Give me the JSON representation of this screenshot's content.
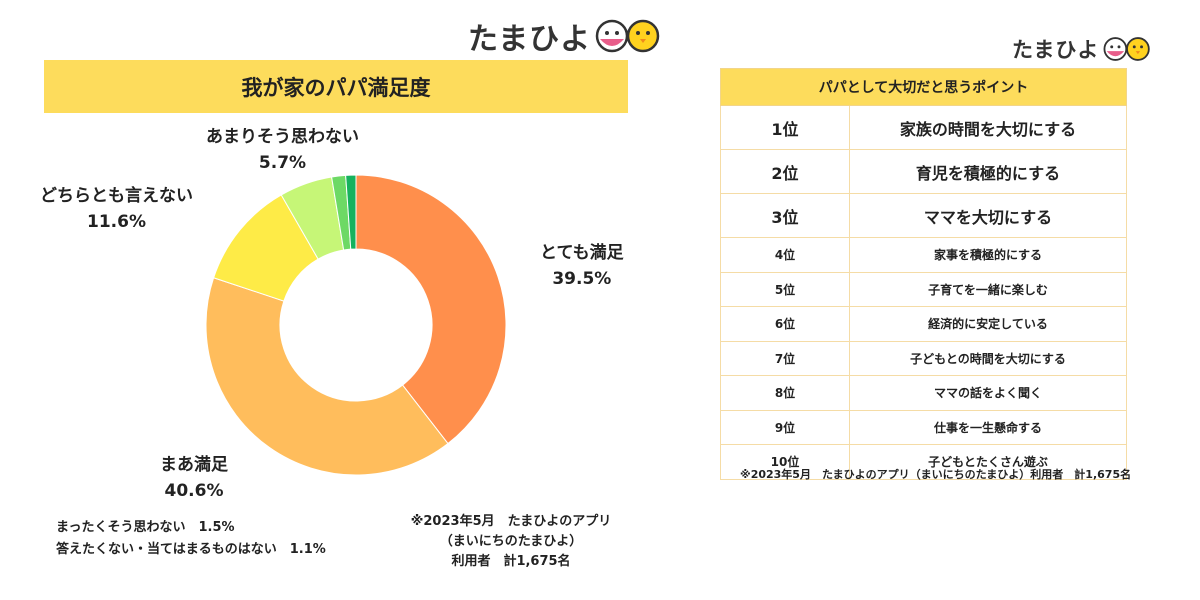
{
  "brand": {
    "logo_text": "たまひよ"
  },
  "left_panel": {
    "title": "我が家のパパ満足度",
    "other_notes": [
      "まったくそう思わない　1.5%",
      "答えたくない・当てはまるものはない　1.1%"
    ],
    "source": [
      "※2023年5月　たまひよのアプリ",
      "（まいにちのたまひよ）",
      "利用者　計1,675名"
    ]
  },
  "chart_data": {
    "type": "pie",
    "variant": "donut",
    "title": "我が家のパパ満足度",
    "slices": [
      {
        "label": "とても満足",
        "value": 39.5,
        "display": "39.5%",
        "color": "#ff8f4c"
      },
      {
        "label": "まあ満足",
        "value": 40.6,
        "display": "40.6%",
        "color": "#ffbd5c"
      },
      {
        "label": "どちらとも言えない",
        "value": 11.6,
        "display": "11.6%",
        "color": "#feeb47"
      },
      {
        "label": "あまりそう思わない",
        "value": 5.7,
        "display": "5.7%",
        "color": "#c6f677"
      },
      {
        "label": "まったくそう思わない",
        "value": 1.5,
        "display": "1.5%",
        "color": "#6dd965"
      },
      {
        "label": "答えたくない・当てはまるものはない",
        "value": 1.1,
        "display": "1.1%",
        "color": "#16b25e"
      }
    ]
  },
  "ranking": {
    "header": "パパとして大切だと思うポイント",
    "rows": [
      {
        "rank": "1位",
        "text": "家族の時間を大切にする"
      },
      {
        "rank": "2位",
        "text": "育児を積極的にする"
      },
      {
        "rank": "3位",
        "text": "ママを大切にする"
      },
      {
        "rank": "4位",
        "text": "家事を積極的にする"
      },
      {
        "rank": "5位",
        "text": "子育てを一緒に楽しむ"
      },
      {
        "rank": "6位",
        "text": "経済的に安定している"
      },
      {
        "rank": "7位",
        "text": "子どもとの時間を大切にする"
      },
      {
        "rank": "8位",
        "text": "ママの話をよく聞く"
      },
      {
        "rank": "9位",
        "text": "仕事を一生懸命する"
      },
      {
        "rank": "10位",
        "text": "子どもとたくさん遊ぶ"
      }
    ],
    "source": "※2023年5月　たまひよのアプリ（まいにちのたまひよ）利用者　計1,675名"
  }
}
